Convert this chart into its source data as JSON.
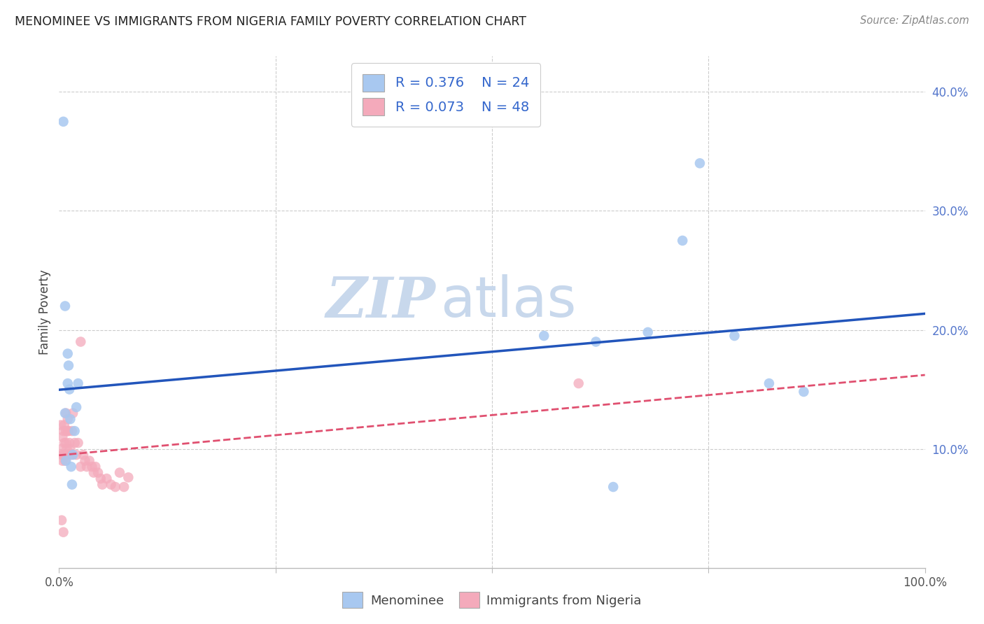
{
  "title": "MENOMINEE VS IMMIGRANTS FROM NIGERIA FAMILY POVERTY CORRELATION CHART",
  "source": "Source: ZipAtlas.com",
  "ylabel": "Family Poverty",
  "xlim": [
    0,
    1.0
  ],
  "ylim": [
    0,
    0.43
  ],
  "legend_R": [
    "0.376",
    "0.073"
  ],
  "legend_N": [
    "24",
    "48"
  ],
  "legend_labels": [
    "Menominee",
    "Immigrants from Nigeria"
  ],
  "blue_color": "#A8C8F0",
  "pink_color": "#F4AABB",
  "trend_blue_color": "#2255BB",
  "trend_pink_color": "#E05070",
  "watermark_color": "#C8D8EC",
  "background_color": "#FFFFFF",
  "grid_color": "#CCCCCC",
  "menominee_x": [
    0.005,
    0.007,
    0.007,
    0.008,
    0.01,
    0.01,
    0.011,
    0.012,
    0.013,
    0.014,
    0.015,
    0.016,
    0.018,
    0.02,
    0.022,
    0.56,
    0.62,
    0.64,
    0.68,
    0.72,
    0.74,
    0.78,
    0.82,
    0.86
  ],
  "menominee_y": [
    0.375,
    0.22,
    0.13,
    0.09,
    0.155,
    0.18,
    0.17,
    0.15,
    0.125,
    0.085,
    0.07,
    0.095,
    0.115,
    0.135,
    0.155,
    0.195,
    0.19,
    0.068,
    0.198,
    0.275,
    0.34,
    0.195,
    0.155,
    0.148
  ],
  "nigeria_x": [
    0.002,
    0.003,
    0.003,
    0.004,
    0.004,
    0.005,
    0.005,
    0.006,
    0.006,
    0.007,
    0.007,
    0.008,
    0.008,
    0.008,
    0.009,
    0.009,
    0.01,
    0.01,
    0.011,
    0.012,
    0.013,
    0.014,
    0.015,
    0.016,
    0.018,
    0.02,
    0.022,
    0.025,
    0.028,
    0.03,
    0.032,
    0.035,
    0.038,
    0.04,
    0.042,
    0.045,
    0.048,
    0.05,
    0.055,
    0.06,
    0.065,
    0.07,
    0.075,
    0.08,
    0.003,
    0.005,
    0.025,
    0.6
  ],
  "nigeria_y": [
    0.12,
    0.1,
    0.095,
    0.11,
    0.09,
    0.115,
    0.095,
    0.12,
    0.105,
    0.095,
    0.09,
    0.13,
    0.115,
    0.105,
    0.1,
    0.095,
    0.125,
    0.115,
    0.115,
    0.105,
    0.1,
    0.095,
    0.115,
    0.13,
    0.105,
    0.095,
    0.105,
    0.085,
    0.095,
    0.09,
    0.085,
    0.09,
    0.085,
    0.08,
    0.085,
    0.08,
    0.075,
    0.07,
    0.075,
    0.07,
    0.068,
    0.08,
    0.068,
    0.076,
    0.04,
    0.03,
    0.19,
    0.155
  ],
  "marker_size": 110
}
